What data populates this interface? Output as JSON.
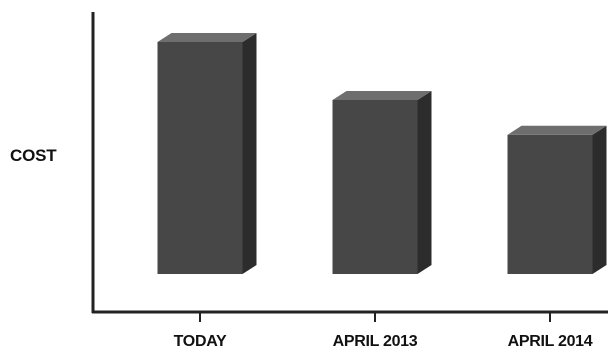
{
  "chart_data": {
    "type": "bar",
    "style": "3d",
    "categories": [
      "TODAY",
      "APRIL 2013",
      "APRIL 2014"
    ],
    "values": [
      100,
      75,
      60
    ],
    "title": "",
    "xlabel": "",
    "ylabel": "COST",
    "ylim": [
      0,
      100
    ],
    "grid": false,
    "legend": "none",
    "colors": {
      "bar_front": "#474747",
      "bar_top": "#6e6e6e",
      "bar_side": "#2c2c2c",
      "axis": "#222222",
      "text": "#111111"
    }
  }
}
